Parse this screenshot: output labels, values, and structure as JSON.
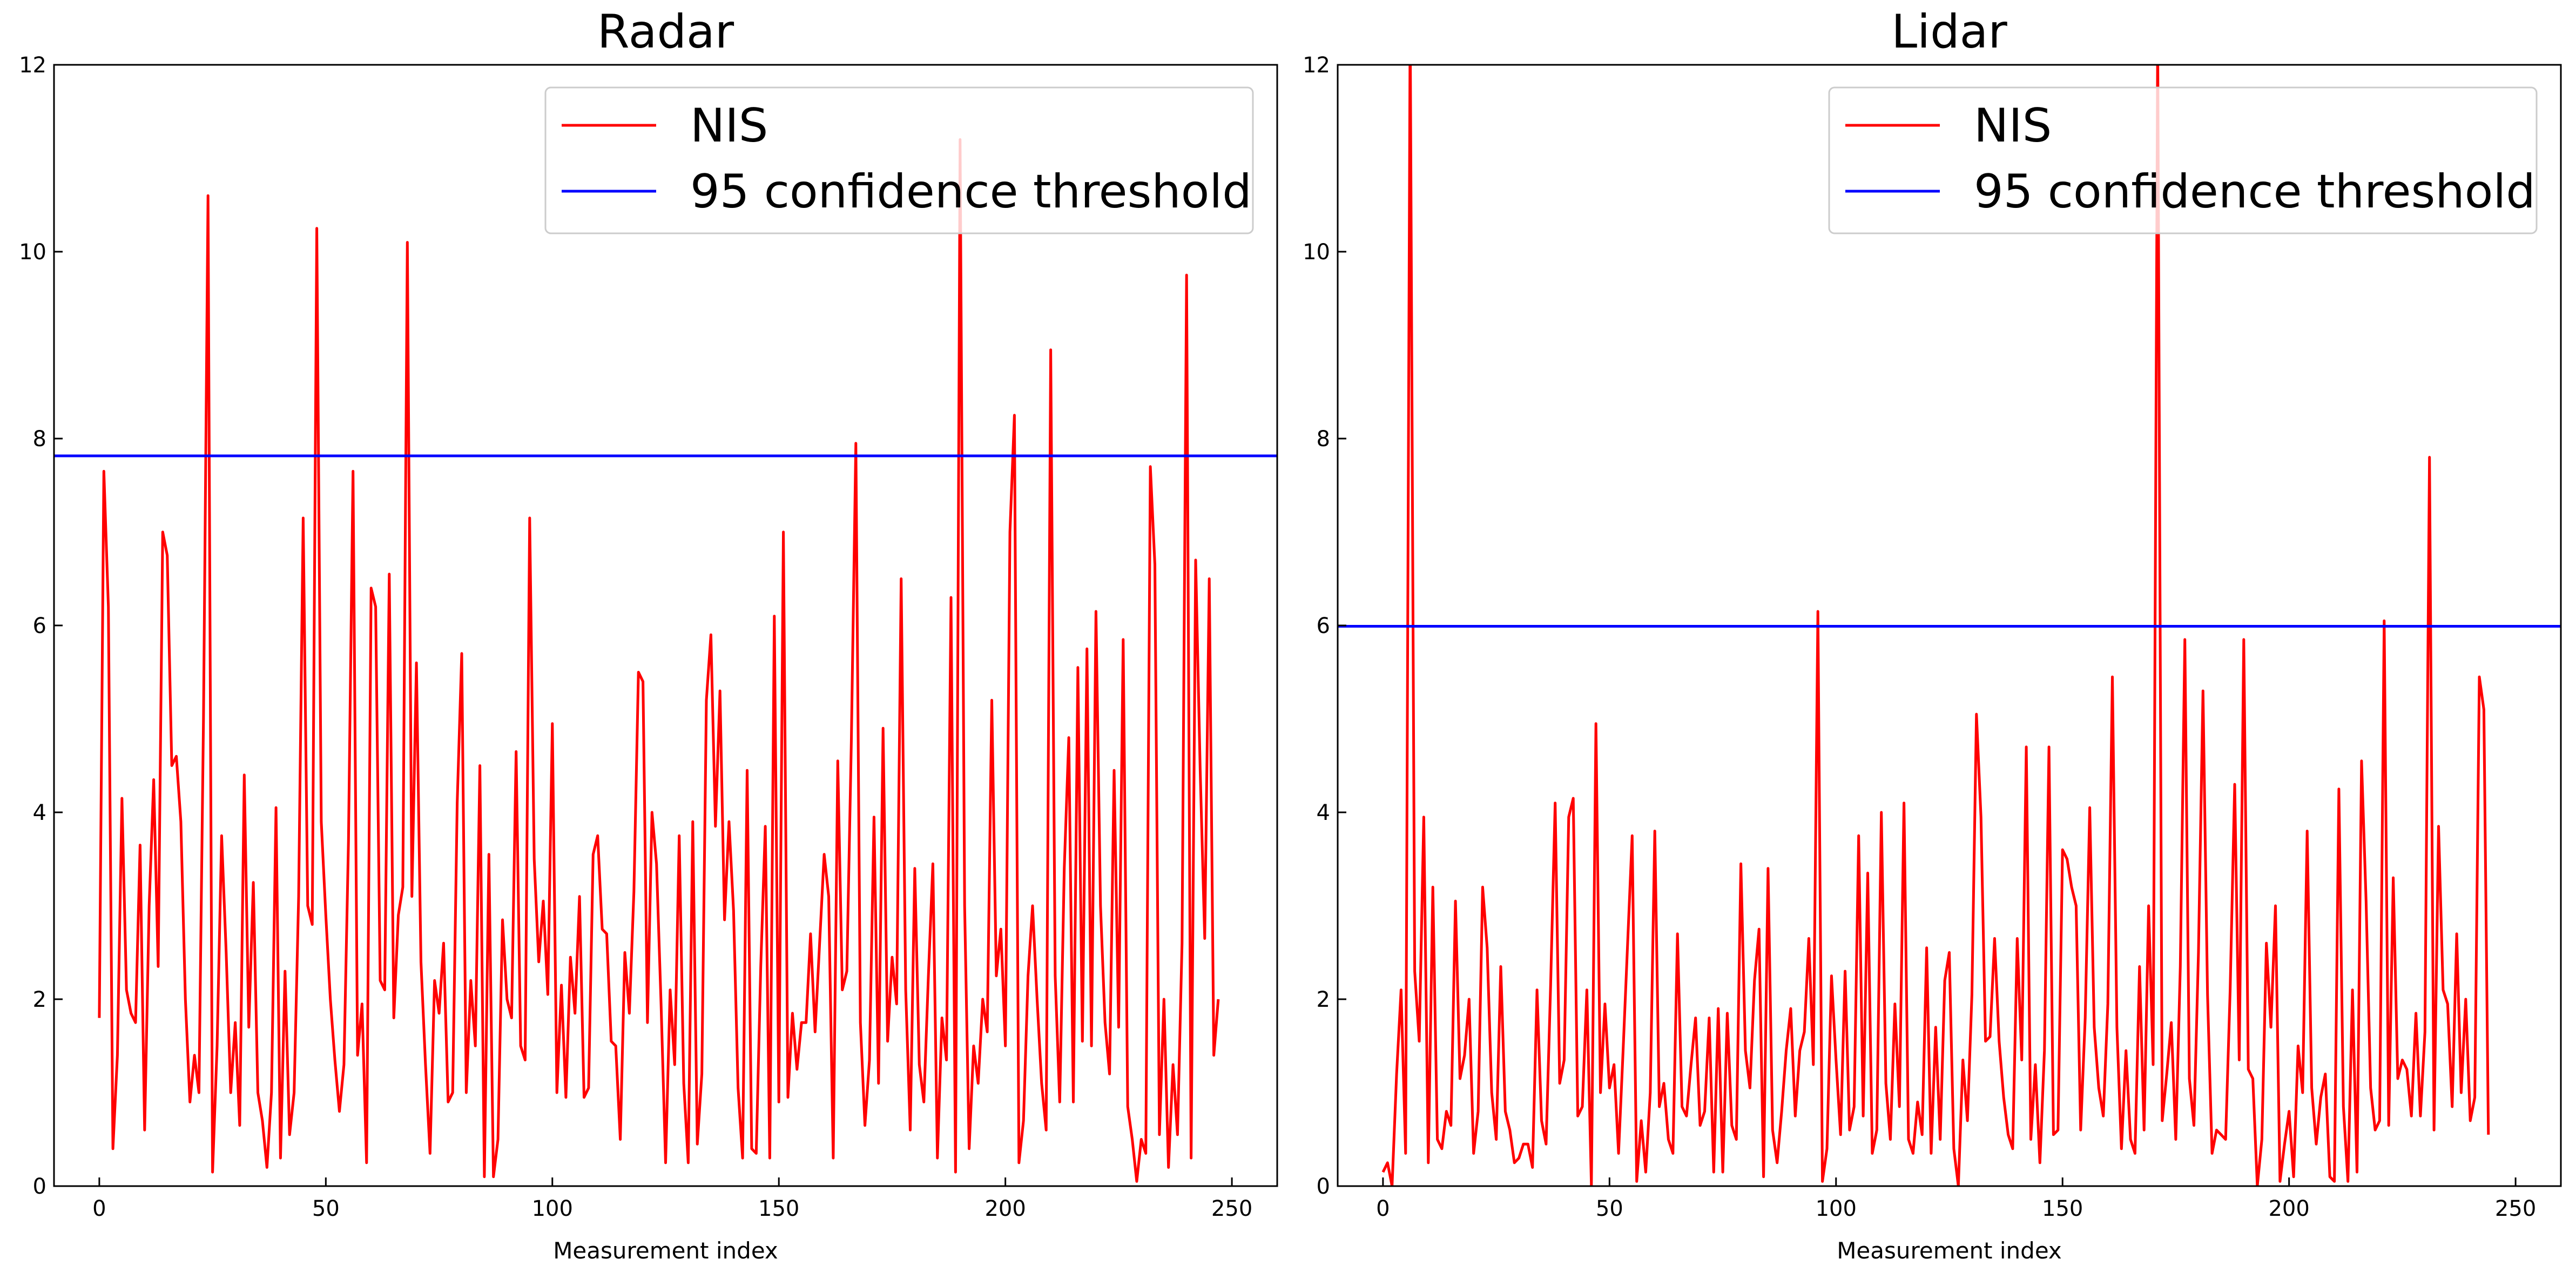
{
  "colors": {
    "nis": "#ff0000",
    "threshold": "#0000ff",
    "axes": "#000000",
    "legend_border": "#cccccc"
  },
  "chart_data": [
    {
      "type": "line",
      "title": "Radar",
      "xlabel": "Measurement index",
      "ylabel": "",
      "xlim": [
        -10,
        260
      ],
      "ylim": [
        0,
        12
      ],
      "x_ticks": [
        0,
        50,
        100,
        150,
        200,
        250
      ],
      "y_ticks": [
        0,
        2,
        4,
        6,
        8,
        10,
        12
      ],
      "x_tick_labels": [
        "0",
        "50",
        "100",
        "150",
        "200",
        "250"
      ],
      "y_tick_labels": [
        "0",
        "2",
        "4",
        "6",
        "8",
        "10",
        "12"
      ],
      "grid": false,
      "legend_position": "upper right",
      "threshold": 7.815,
      "series": [
        {
          "name": "NIS",
          "color": "#ff0000",
          "values": [
            1.8,
            7.65,
            6.2,
            0.4,
            1.4,
            4.15,
            2.1,
            1.85,
            1.75,
            3.65,
            0.6,
            3.0,
            4.35,
            2.35,
            7.0,
            6.75,
            4.5,
            4.6,
            3.9,
            2.0,
            0.9,
            1.4,
            1.0,
            5.0,
            10.6,
            0.15,
            1.5,
            3.75,
            2.5,
            1.0,
            1.75,
            0.65,
            4.4,
            1.7,
            3.25,
            1.0,
            0.7,
            0.2,
            1.0,
            4.05,
            0.3,
            2.3,
            0.55,
            1.0,
            3.1,
            7.15,
            3.0,
            2.8,
            10.25,
            3.9,
            2.9,
            2.0,
            1.35,
            0.8,
            1.3,
            3.7,
            7.65,
            1.4,
            1.95,
            0.25,
            6.4,
            6.2,
            2.2,
            2.1,
            6.55,
            1.8,
            2.9,
            3.2,
            10.1,
            3.1,
            5.6,
            2.4,
            1.3,
            0.35,
            2.2,
            1.85,
            2.6,
            0.9,
            1.0,
            4.1,
            5.7,
            1.0,
            2.2,
            1.5,
            4.5,
            0.1,
            3.55,
            0.1,
            0.5,
            2.85,
            2.0,
            1.8,
            4.65,
            1.5,
            1.35,
            7.15,
            3.5,
            2.4,
            3.05,
            2.05,
            4.95,
            1.0,
            2.15,
            0.95,
            2.45,
            1.85,
            3.1,
            0.95,
            1.05,
            3.55,
            3.75,
            2.75,
            2.7,
            1.55,
            1.5,
            0.5,
            2.5,
            1.85,
            3.15,
            5.5,
            5.4,
            1.75,
            4.0,
            3.45,
            1.95,
            0.25,
            2.1,
            1.3,
            3.75,
            1.1,
            0.25,
            3.9,
            0.45,
            1.2,
            5.2,
            5.9,
            3.85,
            5.3,
            2.85,
            3.9,
            2.95,
            1.05,
            0.3,
            4.45,
            0.4,
            0.35,
            2.35,
            3.85,
            0.3,
            6.1,
            0.9,
            7.0,
            0.95,
            1.85,
            1.25,
            1.75,
            1.75,
            2.7,
            1.65,
            2.6,
            3.55,
            3.1,
            0.3,
            4.55,
            2.1,
            2.3,
            4.75,
            7.95,
            1.75,
            0.65,
            1.35,
            3.95,
            1.1,
            4.9,
            1.55,
            2.45,
            1.95,
            6.5,
            2.1,
            0.6,
            3.4,
            1.3,
            0.9,
            2.25,
            3.45,
            0.3,
            1.8,
            1.35,
            6.3,
            0.15,
            11.2,
            3.0,
            0.4,
            1.5,
            1.1,
            2.0,
            1.65,
            5.2,
            2.25,
            2.75,
            1.5,
            7.0,
            8.25,
            0.25,
            0.7,
            2.25,
            3.0,
            2.0,
            1.1,
            0.6,
            8.95,
            2.25,
            0.9,
            3.4,
            4.8,
            0.9,
            5.55,
            1.55,
            5.75,
            1.5,
            6.15,
            3.0,
            1.75,
            1.2,
            4.45,
            1.7,
            5.85,
            0.85,
            0.5,
            0.05,
            0.5,
            0.35,
            7.7,
            6.65,
            0.55,
            2.0,
            0.2,
            1.3,
            0.55,
            2.6,
            9.75,
            0.3,
            6.7,
            4.45,
            2.65,
            6.5,
            1.4,
            2.0
          ]
        },
        {
          "name": "95 confidence threshold",
          "color": "#0000ff",
          "constant": 7.815
        }
      ]
    },
    {
      "type": "line",
      "title": "Lidar",
      "xlabel": "Measurement index",
      "ylabel": "",
      "xlim": [
        -10,
        260
      ],
      "ylim": [
        0,
        12
      ],
      "x_ticks": [
        0,
        50,
        100,
        150,
        200,
        250
      ],
      "y_ticks": [
        0,
        2,
        4,
        6,
        8,
        10,
        12
      ],
      "x_tick_labels": [
        "0",
        "50",
        "100",
        "150",
        "200",
        "250"
      ],
      "y_tick_labels": [
        "0",
        "2",
        "4",
        "6",
        "8",
        "10",
        "12"
      ],
      "grid": false,
      "legend_position": "upper right",
      "threshold": 5.991,
      "series": [
        {
          "name": "NIS",
          "color": "#ff0000",
          "values": [
            0.15,
            0.25,
            0.0,
            1.2,
            2.1,
            0.35,
            12.5,
            2.3,
            1.55,
            3.95,
            0.25,
            3.2,
            0.5,
            0.4,
            0.8,
            0.65,
            3.05,
            1.15,
            1.4,
            2.0,
            0.35,
            0.8,
            3.2,
            2.55,
            1.0,
            0.5,
            2.35,
            0.8,
            0.6,
            0.25,
            0.3,
            0.45,
            0.45,
            0.2,
            2.1,
            0.7,
            0.45,
            2.15,
            4.1,
            1.1,
            1.35,
            3.95,
            4.15,
            0.75,
            0.85,
            2.1,
            0.0,
            4.95,
            1.0,
            1.95,
            1.05,
            1.3,
            0.35,
            1.45,
            2.6,
            3.75,
            0.05,
            0.7,
            0.15,
            1.0,
            3.8,
            0.85,
            1.1,
            0.5,
            0.35,
            2.7,
            0.85,
            0.75,
            1.3,
            1.8,
            0.65,
            0.8,
            1.8,
            0.15,
            1.9,
            0.15,
            1.85,
            0.65,
            0.5,
            3.45,
            1.45,
            1.05,
            2.2,
            2.75,
            0.1,
            3.4,
            0.6,
            0.25,
            0.8,
            1.45,
            1.9,
            0.75,
            1.45,
            1.65,
            2.65,
            1.3,
            6.15,
            0.05,
            0.4,
            2.25,
            1.35,
            0.55,
            2.3,
            0.6,
            0.85,
            3.75,
            0.75,
            3.35,
            0.35,
            0.6,
            4.0,
            1.1,
            0.5,
            1.95,
            0.85,
            4.1,
            0.5,
            0.35,
            0.9,
            0.55,
            2.55,
            0.35,
            1.7,
            0.5,
            2.2,
            2.5,
            0.4,
            0.0,
            1.35,
            0.7,
            2.05,
            5.05,
            3.95,
            1.55,
            1.6,
            2.65,
            1.55,
            0.95,
            0.55,
            0.4,
            2.65,
            1.35,
            4.7,
            0.5,
            1.3,
            0.25,
            1.45,
            4.7,
            0.55,
            0.6,
            3.6,
            3.5,
            3.2,
            3.0,
            0.6,
            1.8,
            4.05,
            1.7,
            1.05,
            0.75,
            1.95,
            5.45,
            1.7,
            0.4,
            1.45,
            0.5,
            0.35,
            2.35,
            0.6,
            3.0,
            1.3,
            12.3,
            0.7,
            1.2,
            1.75,
            0.5,
            2.35,
            5.85,
            1.15,
            0.65,
            2.5,
            5.3,
            2.05,
            0.35,
            0.6,
            0.55,
            0.5,
            2.1,
            4.3,
            1.35,
            5.85,
            1.25,
            1.15,
            0.0,
            0.5,
            2.6,
            1.7,
            3.0,
            0.05,
            0.45,
            0.8,
            0.1,
            1.5,
            1.0,
            3.8,
            1.05,
            0.45,
            0.95,
            1.2,
            0.1,
            0.05,
            4.25,
            0.85,
            0.05,
            2.1,
            0.15,
            4.55,
            3.05,
            1.05,
            0.6,
            0.7,
            6.05,
            0.65,
            3.3,
            1.15,
            1.35,
            1.25,
            0.75,
            1.85,
            0.75,
            1.65,
            7.8,
            0.6,
            3.85,
            2.1,
            1.95,
            0.85,
            2.7,
            1.0,
            2.0,
            0.7,
            0.95,
            5.45,
            5.1,
            0.55
          ]
        },
        {
          "name": "95 confidence threshold",
          "color": "#0000ff",
          "constant": 5.991
        }
      ]
    }
  ]
}
